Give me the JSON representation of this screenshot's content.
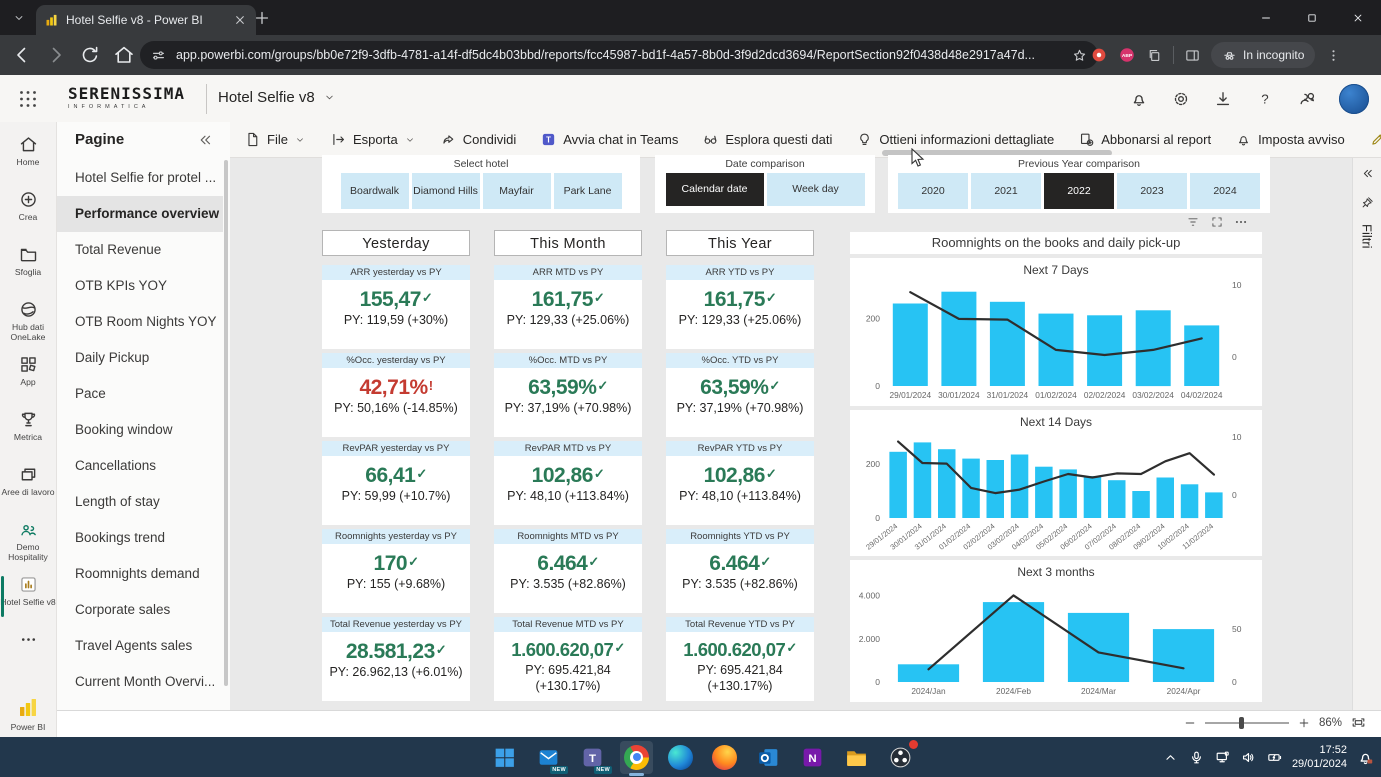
{
  "browser": {
    "tab_title": "Hotel Selfie v8 - Power BI",
    "url": "app.powerbi.com/groups/bb0e72f9-3dfb-4781-a14f-df5dc4b03bbd/reports/fcc45987-bd1f-4a57-8b0d-3f9d2dcd3694/ReportSection92f0438d48e2917a47d...",
    "incognito_label": "In incognito",
    "adblock_badge": "ABP"
  },
  "pbi_header": {
    "logo_main": "SERENISSIMA",
    "logo_sub": "INFORMATICA",
    "report_title": "Hotel Selfie v8"
  },
  "left_nav": {
    "items": [
      {
        "icon": "home-icon",
        "label": "Home"
      },
      {
        "icon": "create-icon",
        "label": "Crea"
      },
      {
        "icon": "browse-icon",
        "label": "Sfoglia"
      },
      {
        "icon": "onelake-icon",
        "label": "Hub dati OneLake"
      },
      {
        "icon": "apps-icon",
        "label": "App"
      },
      {
        "icon": "metrics-icon",
        "label": "Metrica"
      },
      {
        "icon": "workspaces-icon",
        "label": "Aree di lavoro"
      },
      {
        "icon": "people-icon",
        "label": "Demo Hospitality"
      },
      {
        "icon": "report-icon",
        "label": "Hotel Selfie v8",
        "selected": true
      },
      {
        "icon": "more-icon",
        "label": ""
      }
    ],
    "footer_label": "Power BI"
  },
  "pages_panel": {
    "title": "Pagine",
    "selected_index": 1,
    "items": [
      "Hotel Selfie for protel ...",
      "Performance overview",
      "Total Revenue",
      "OTB KPIs YOY",
      "OTB Room Nights YOY",
      "Daily Pickup",
      "Pace",
      "Booking window",
      "Cancellations",
      "Length of stay",
      "Bookings trend",
      "Roomnights demand",
      "Corporate sales",
      "Travel Agents sales",
      "Current Month Overvi..."
    ]
  },
  "menubar": {
    "items": [
      {
        "icon": "file-icon",
        "label": "File",
        "chevron": true
      },
      {
        "icon": "export-icon",
        "label": "Esporta",
        "chevron": true
      },
      {
        "icon": "share-icon",
        "label": "Condividi"
      },
      {
        "icon": "teams-icon",
        "label": "Avvia chat in Teams"
      },
      {
        "icon": "explore-icon",
        "label": "Esplora questi dati"
      },
      {
        "icon": "insights-icon",
        "label": "Ottieni informazioni dettagliate"
      },
      {
        "icon": "subscribe-icon",
        "label": "Abbonarsi al report"
      },
      {
        "icon": "alert-icon",
        "label": "Imposta avviso"
      },
      {
        "icon": "edit-icon",
        "label": "Modifica"
      }
    ]
  },
  "filters": {
    "select_hotel": {
      "label": "Select hotel",
      "selected": -1,
      "options": [
        "Boardwalk",
        "Diamond Hills",
        "Mayfair",
        "Park Lane"
      ]
    },
    "date_comparison": {
      "label": "Date comparison",
      "selected": 0,
      "options": [
        "Calendar date",
        "Week day"
      ]
    },
    "py_comparison": {
      "label": "Previous Year comparison",
      "selected": 2,
      "options": [
        "2020",
        "2021",
        "2022",
        "2023",
        "2024"
      ]
    }
  },
  "kpi": {
    "columns": [
      {
        "header": "Yesterday",
        "cards": [
          {
            "title": "ARR yesterday vs PY",
            "value": "155,47",
            "status": "good",
            "indicator": "✓",
            "py": "PY: 119,59 (+30%)"
          },
          {
            "title": "%Occ. yesterday vs PY",
            "value": "42,71%",
            "status": "bad",
            "indicator": "!",
            "py": "PY: 50,16% (-14.85%)"
          },
          {
            "title": "RevPAR yesterday vs PY",
            "value": "66,41",
            "status": "good",
            "indicator": "✓",
            "py": "PY: 59,99 (+10.7%)"
          },
          {
            "title": "Roomnights yesterday vs PY",
            "value": "170",
            "status": "good",
            "indicator": "✓",
            "py": "PY: 155 (+9.68%)"
          },
          {
            "title": "Total Revenue yesterday vs PY",
            "value": "28.581,23",
            "status": "good",
            "indicator": "✓",
            "py": "PY: 26.962,13 (+6.01%)"
          }
        ]
      },
      {
        "header": "This Month",
        "cards": [
          {
            "title": "ARR MTD vs PY",
            "value": "161,75",
            "status": "good",
            "indicator": "✓",
            "py": "PY: 129,33 (+25.06%)"
          },
          {
            "title": "%Occ. MTD vs PY",
            "value": "63,59%",
            "status": "good",
            "indicator": "✓",
            "py": "PY: 37,19% (+70.98%)"
          },
          {
            "title": "RevPAR MTD vs PY",
            "value": "102,86",
            "status": "good",
            "indicator": "✓",
            "py": "PY: 48,10 (+113.84%)"
          },
          {
            "title": "Roomnights MTD vs PY",
            "value": "6.464",
            "status": "good",
            "indicator": "✓",
            "py": "PY: 3.535 (+82.86%)"
          },
          {
            "title": "Total Revenue MTD vs PY",
            "value": "1.600.620,07",
            "status": "good",
            "indicator": "✓",
            "py": "PY: 695.421,84 (+130.17%)"
          }
        ]
      },
      {
        "header": "This Year",
        "cards": [
          {
            "title": "ARR YTD vs PY",
            "value": "161,75",
            "status": "good",
            "indicator": "✓",
            "py": "PY: 129,33 (+25.06%)"
          },
          {
            "title": "%Occ. YTD vs PY",
            "value": "63,59%",
            "status": "good",
            "indicator": "✓",
            "py": "PY: 37,19% (+70.98%)"
          },
          {
            "title": "RevPAR YTD vs PY",
            "value": "102,86",
            "status": "good",
            "indicator": "✓",
            "py": "PY: 48,10 (+113.84%)"
          },
          {
            "title": "Roomnights YTD vs PY",
            "value": "6.464",
            "status": "good",
            "indicator": "✓",
            "py": "PY: 3.535 (+82.86%)"
          },
          {
            "title": "Total Revenue YTD vs PY",
            "value": "1.600.620,07",
            "status": "good",
            "indicator": "✓",
            "py": "PY: 695.421,84 (+130.17%)"
          }
        ]
      }
    ]
  },
  "charts_panel": {
    "title": "Roomnights on the books and daily pick-up"
  },
  "chart_data": [
    {
      "type": "bar+line",
      "title": "Next 7 Days",
      "categories": [
        "29/01/2024",
        "30/01/2024",
        "31/01/2024",
        "01/02/2024",
        "02/02/2024",
        "03/02/2024",
        "04/02/2024"
      ],
      "series": [
        {
          "name": "Roomnights on the books",
          "type": "bar",
          "axis": "left",
          "values": [
            245,
            280,
            250,
            215,
            210,
            225,
            180
          ]
        },
        {
          "name": "Daily pick-up",
          "type": "line",
          "axis": "right",
          "values": [
            9,
            5.3,
            5.2,
            1.0,
            0.3,
            1.0,
            2.6
          ]
        }
      ],
      "left_axis": {
        "min": 0,
        "max": 300,
        "ticks": [
          {
            "value": 200,
            "label": "200"
          },
          {
            "value": 0,
            "label": "0"
          }
        ]
      },
      "right_axis": {
        "min": -4,
        "max": 10,
        "ticks": [
          {
            "value": 10,
            "label": "10"
          },
          {
            "value": 0,
            "label": "0"
          }
        ]
      },
      "rotate_x_labels": false
    },
    {
      "type": "bar+line",
      "title": "Next 14 Days",
      "categories": [
        "29/01/2024",
        "30/01/2024",
        "31/01/2024",
        "01/02/2024",
        "02/02/2024",
        "03/02/2024",
        "04/02/2024",
        "05/02/2024",
        "06/02/2024",
        "07/02/2024",
        "08/02/2024",
        "09/02/2024",
        "10/02/2024",
        "11/02/2024"
      ],
      "series": [
        {
          "name": "Roomnights on the books",
          "type": "bar",
          "axis": "left",
          "values": [
            245,
            280,
            255,
            220,
            215,
            235,
            190,
            180,
            155,
            140,
            100,
            150,
            125,
            95
          ]
        },
        {
          "name": "Daily pick-up",
          "type": "line",
          "axis": "right",
          "values": [
            9.2,
            5.5,
            5.4,
            1.2,
            0.3,
            0.9,
            2.3,
            3.6,
            3.0,
            3.7,
            3.6,
            5.8,
            7.2,
            3.5
          ]
        }
      ],
      "left_axis": {
        "min": 0,
        "max": 300,
        "ticks": [
          {
            "value": 200,
            "label": "200"
          },
          {
            "value": 0,
            "label": "0"
          }
        ]
      },
      "right_axis": {
        "min": -4,
        "max": 10,
        "ticks": [
          {
            "value": 10,
            "label": "10"
          },
          {
            "value": 0,
            "label": "0"
          }
        ]
      },
      "rotate_x_labels": true
    },
    {
      "type": "bar+line",
      "title": "Next 3 months",
      "categories": [
        "2024/Jan",
        "2024/Feb",
        "2024/Mar",
        "2024/Apr"
      ],
      "series": [
        {
          "name": "Roomnights on the books",
          "type": "bar",
          "axis": "left",
          "values": [
            820,
            3700,
            3200,
            2450
          ]
        },
        {
          "name": "Daily pick-up",
          "type": "line",
          "axis": "right",
          "values": [
            12,
            82,
            28,
            13
          ]
        }
      ],
      "left_axis": {
        "min": 0,
        "max": 4400,
        "ticks": [
          {
            "value": 4000,
            "label": "4.000"
          },
          {
            "value": 2000,
            "label": "2.000"
          },
          {
            "value": 0,
            "label": "0"
          }
        ]
      },
      "right_axis": {
        "min": 0,
        "max": 90,
        "ticks": [
          {
            "value": 50,
            "label": "50"
          },
          {
            "value": 0,
            "label": "0"
          }
        ]
      },
      "rotate_x_labels": false
    }
  ],
  "filters_pane_label": "Filtri",
  "footer": {
    "zoom_level": "86%"
  },
  "taskbar": {
    "time": "17:52",
    "date": "29/01/2024",
    "apps": [
      {
        "name": "windows-start"
      },
      {
        "name": "outlook-new",
        "badge": "NEW"
      },
      {
        "name": "teams",
        "badge": "NEW"
      },
      {
        "name": "chrome",
        "active": true
      },
      {
        "name": "edge"
      },
      {
        "name": "firefox"
      },
      {
        "name": "outlook-classic"
      },
      {
        "name": "onenote"
      },
      {
        "name": "file-explorer"
      },
      {
        "name": "obs",
        "notification": true
      }
    ]
  },
  "colors": {
    "bar": "#27c3f3",
    "line": "#2e2e2e",
    "positive": "#2a7a57",
    "negative": "#c43b31",
    "selected_dark": "#252423",
    "filter_button_blue": "#cfe9f6",
    "pbi_yellow": "#f2c811"
  }
}
